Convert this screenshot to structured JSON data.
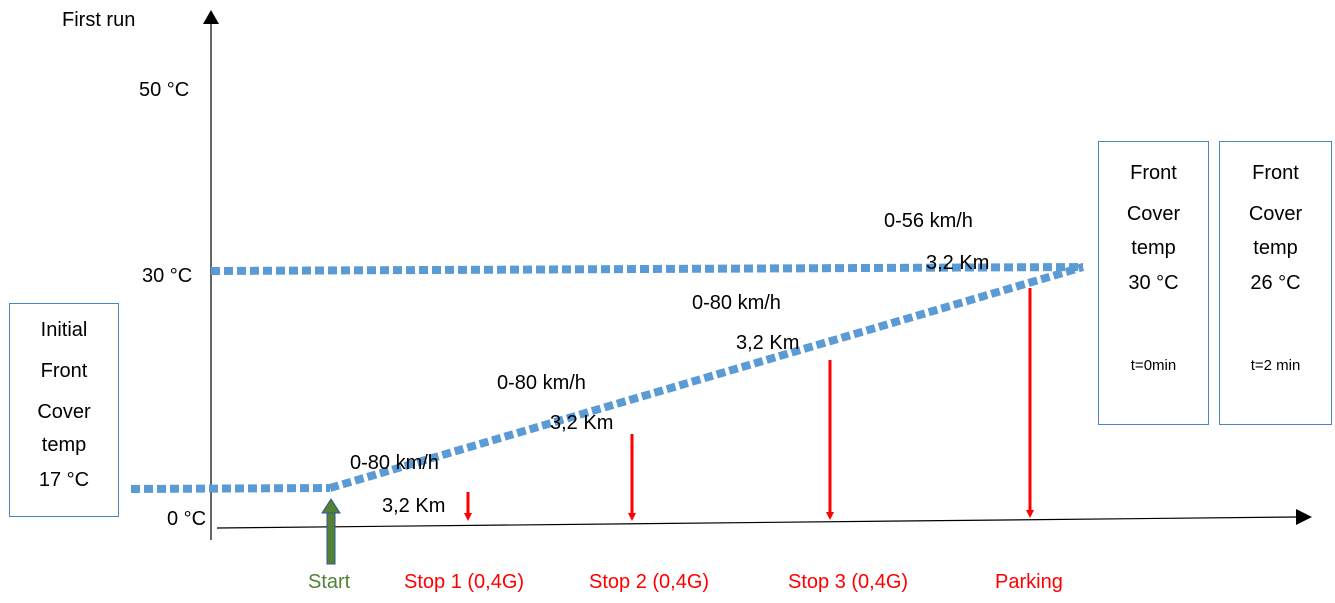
{
  "diagram": {
    "title": "First run",
    "y_axis_ticks": [
      "50 °C",
      "30 °C",
      "0 °C"
    ],
    "initial_box": {
      "lines": [
        "Initial",
        "Front",
        "Cover",
        "temp",
        "17 °C"
      ]
    },
    "segments": [
      {
        "speed": "0-80 km/h",
        "distance": "3,2 Km"
      },
      {
        "speed": "0-80 km/h",
        "distance": "3,2 Km"
      },
      {
        "speed": "0-80 km/h",
        "distance": "3,2 Km"
      },
      {
        "speed": "0-56 km/h",
        "distance": "3,2 Km"
      }
    ],
    "events": [
      {
        "label": "Start",
        "color": "#548235"
      },
      {
        "label": "Stop 1 (0,4G)",
        "color": "#ff0000"
      },
      {
        "label": "Stop 2 (0,4G)",
        "color": "#ff0000"
      },
      {
        "label": "Stop 3 (0,4G)",
        "color": "#ff0000"
      },
      {
        "label": "Parking",
        "color": "#ff0000"
      }
    ],
    "final_boxes": [
      {
        "lines": [
          "Front",
          "Cover",
          "temp",
          "30 °C"
        ],
        "time": "t=0min"
      },
      {
        "lines": [
          "Front",
          "Cover",
          "temp",
          "26 °C"
        ],
        "time": "t=2 min"
      }
    ],
    "colors": {
      "trend_line": "#5b9bd5",
      "stop_arrow": "#ff0000",
      "start_arrow_fill": "#548235",
      "start_arrow_outline": "#2f5597",
      "box_border": "#4a86c5"
    },
    "icons": {
      "start_marker": "up-arrow-icon",
      "stop_marker": "down-arrow-icon"
    }
  }
}
